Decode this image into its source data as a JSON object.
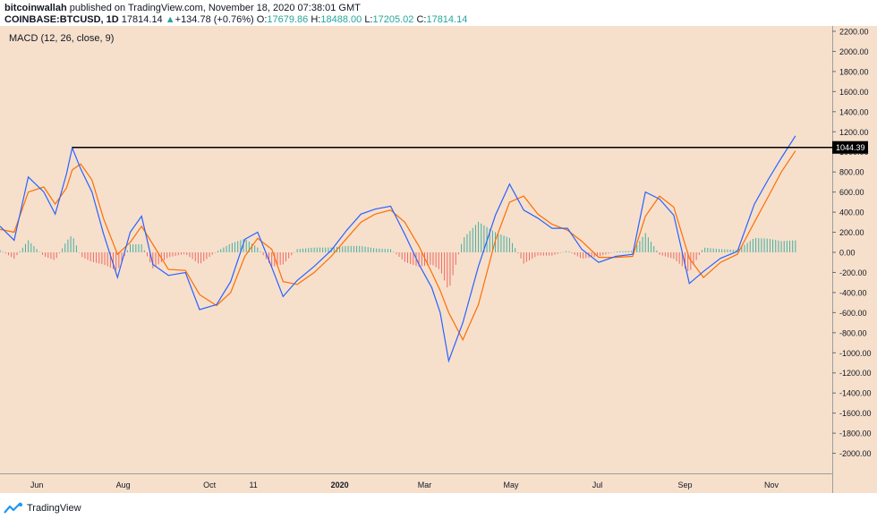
{
  "header": {
    "publisher": "bitcoinwallah",
    "published_text": "published on TradingView.com, November 18, 2020 07:38:01 GMT",
    "symbol": "COINBASE:BTCUSD, 1D",
    "last": "17814.14",
    "change_arrow": "▲",
    "change": "+134.78 (+0.76%)",
    "open_label": "O:",
    "open": "17679.86",
    "high_label": "H:",
    "high": "18488.00",
    "low_label": "L:",
    "low": "17205.02",
    "close_label": "C:",
    "close": "17814.14"
  },
  "footer": {
    "brand": "TradingView"
  },
  "colors": {
    "background": "#f6e0cc",
    "macd_line": "#2962ff",
    "signal_line": "#ff6d00",
    "hist_positive": "#26a69a",
    "hist_negative": "#ef5350",
    "resistance_line": "#000000"
  },
  "chart_data": {
    "type": "line",
    "indicator_label": "MACD (12, 26, close, 9)",
    "ylim": [
      -2200,
      2200
    ],
    "y_ticks": [
      "2200.00",
      "2000.00",
      "1800.00",
      "1600.00",
      "1400.00",
      "1200.00",
      "1000.00",
      "800.00",
      "600.00",
      "400.00",
      "200.00",
      "0.00",
      "-200.00",
      "-400.00",
      "-600.00",
      "-800.00",
      "-1000.00",
      "-1200.00",
      "-1400.00",
      "-1600.00",
      "-1800.00",
      "-2000.00"
    ],
    "x_axis": {
      "start_date": "2019-05-06",
      "end_date": "2020-12-14",
      "ticks": [
        {
          "label": "Jun",
          "date": "2019-06-01",
          "bold": false
        },
        {
          "label": "Aug",
          "date": "2019-08-01",
          "bold": false
        },
        {
          "label": "Oct",
          "date": "2019-10-01",
          "bold": false
        },
        {
          "label": "11",
          "date": "2019-11-01",
          "bold": false
        },
        {
          "label": "2020",
          "date": "2020-01-01",
          "bold": true
        },
        {
          "label": "Mar",
          "date": "2020-03-01",
          "bold": false
        },
        {
          "label": "May",
          "date": "2020-05-01",
          "bold": false
        },
        {
          "label": "Jul",
          "date": "2020-07-01",
          "bold": false
        },
        {
          "label": "Sep",
          "date": "2020-09-01",
          "bold": false
        },
        {
          "label": "Nov",
          "date": "2020-11-01",
          "bold": false
        }
      ]
    },
    "resistance": {
      "value": 1044.39,
      "label": "1044.39",
      "from": "2019-06-26",
      "to": "2020-12-14"
    },
    "series": [
      {
        "role": "macd",
        "points": [
          [
            "2019-05-06",
            260
          ],
          [
            "2019-05-16",
            120
          ],
          [
            "2019-05-26",
            750
          ],
          [
            "2019-06-06",
            600
          ],
          [
            "2019-06-14",
            380
          ],
          [
            "2019-06-22",
            780
          ],
          [
            "2019-06-26",
            1040
          ],
          [
            "2019-07-02",
            830
          ],
          [
            "2019-07-10",
            600
          ],
          [
            "2019-07-18",
            190
          ],
          [
            "2019-07-28",
            -250
          ],
          [
            "2019-08-06",
            200
          ],
          [
            "2019-08-14",
            360
          ],
          [
            "2019-08-22",
            -120
          ],
          [
            "2019-09-02",
            -230
          ],
          [
            "2019-09-14",
            -200
          ],
          [
            "2019-09-24",
            -570
          ],
          [
            "2019-10-06",
            -520
          ],
          [
            "2019-10-16",
            -290
          ],
          [
            "2019-10-26",
            130
          ],
          [
            "2019-11-04",
            200
          ],
          [
            "2019-11-14",
            -150
          ],
          [
            "2019-11-22",
            -440
          ],
          [
            "2019-12-02",
            -280
          ],
          [
            "2019-12-14",
            -140
          ],
          [
            "2019-12-26",
            20
          ],
          [
            "2020-01-06",
            220
          ],
          [
            "2020-01-16",
            380
          ],
          [
            "2020-01-26",
            430
          ],
          [
            "2020-02-06",
            460
          ],
          [
            "2020-02-16",
            180
          ],
          [
            "2020-02-26",
            -120
          ],
          [
            "2020-03-06",
            -350
          ],
          [
            "2020-03-12",
            -600
          ],
          [
            "2020-03-18",
            -1080
          ],
          [
            "2020-03-28",
            -700
          ],
          [
            "2020-04-08",
            -140
          ],
          [
            "2020-04-20",
            370
          ],
          [
            "2020-04-30",
            680
          ],
          [
            "2020-05-10",
            420
          ],
          [
            "2020-05-20",
            340
          ],
          [
            "2020-05-30",
            240
          ],
          [
            "2020-06-10",
            240
          ],
          [
            "2020-06-20",
            30
          ],
          [
            "2020-07-02",
            -100
          ],
          [
            "2020-07-14",
            -40
          ],
          [
            "2020-07-26",
            -20
          ],
          [
            "2020-08-04",
            600
          ],
          [
            "2020-08-14",
            530
          ],
          [
            "2020-08-24",
            370
          ],
          [
            "2020-09-04",
            -310
          ],
          [
            "2020-09-14",
            -190
          ],
          [
            "2020-09-26",
            -60
          ],
          [
            "2020-10-08",
            10
          ],
          [
            "2020-10-20",
            480
          ],
          [
            "2020-10-30",
            730
          ],
          [
            "2020-11-08",
            940
          ],
          [
            "2020-11-18",
            1160
          ]
        ]
      },
      {
        "role": "signal",
        "points": [
          [
            "2019-05-06",
            230
          ],
          [
            "2019-05-16",
            200
          ],
          [
            "2019-05-26",
            600
          ],
          [
            "2019-06-06",
            650
          ],
          [
            "2019-06-14",
            480
          ],
          [
            "2019-06-22",
            640
          ],
          [
            "2019-06-26",
            820
          ],
          [
            "2019-07-02",
            880
          ],
          [
            "2019-07-10",
            720
          ],
          [
            "2019-07-18",
            340
          ],
          [
            "2019-07-28",
            -20
          ],
          [
            "2019-08-06",
            100
          ],
          [
            "2019-08-14",
            260
          ],
          [
            "2019-08-22",
            80
          ],
          [
            "2019-09-02",
            -170
          ],
          [
            "2019-09-14",
            -180
          ],
          [
            "2019-09-24",
            -420
          ],
          [
            "2019-10-06",
            -530
          ],
          [
            "2019-10-16",
            -400
          ],
          [
            "2019-10-26",
            -40
          ],
          [
            "2019-11-04",
            140
          ],
          [
            "2019-11-14",
            30
          ],
          [
            "2019-11-22",
            -290
          ],
          [
            "2019-12-02",
            -320
          ],
          [
            "2019-12-14",
            -200
          ],
          [
            "2019-12-26",
            -40
          ],
          [
            "2020-01-06",
            140
          ],
          [
            "2020-01-16",
            300
          ],
          [
            "2020-01-26",
            380
          ],
          [
            "2020-02-06",
            420
          ],
          [
            "2020-02-16",
            300
          ],
          [
            "2020-02-26",
            60
          ],
          [
            "2020-03-06",
            -200
          ],
          [
            "2020-03-12",
            -380
          ],
          [
            "2020-03-18",
            -600
          ],
          [
            "2020-03-28",
            -870
          ],
          [
            "2020-04-08",
            -520
          ],
          [
            "2020-04-20",
            120
          ],
          [
            "2020-04-30",
            500
          ],
          [
            "2020-05-10",
            560
          ],
          [
            "2020-05-20",
            380
          ],
          [
            "2020-05-30",
            280
          ],
          [
            "2020-06-10",
            220
          ],
          [
            "2020-06-20",
            110
          ],
          [
            "2020-07-02",
            -50
          ],
          [
            "2020-07-14",
            -50
          ],
          [
            "2020-07-26",
            -40
          ],
          [
            "2020-08-04",
            360
          ],
          [
            "2020-08-14",
            560
          ],
          [
            "2020-08-24",
            450
          ],
          [
            "2020-09-04",
            -60
          ],
          [
            "2020-09-14",
            -250
          ],
          [
            "2020-09-26",
            -100
          ],
          [
            "2020-10-08",
            -20
          ],
          [
            "2020-10-20",
            300
          ],
          [
            "2020-10-30",
            560
          ],
          [
            "2020-11-08",
            800
          ],
          [
            "2020-11-18",
            1010
          ]
        ]
      }
    ]
  }
}
